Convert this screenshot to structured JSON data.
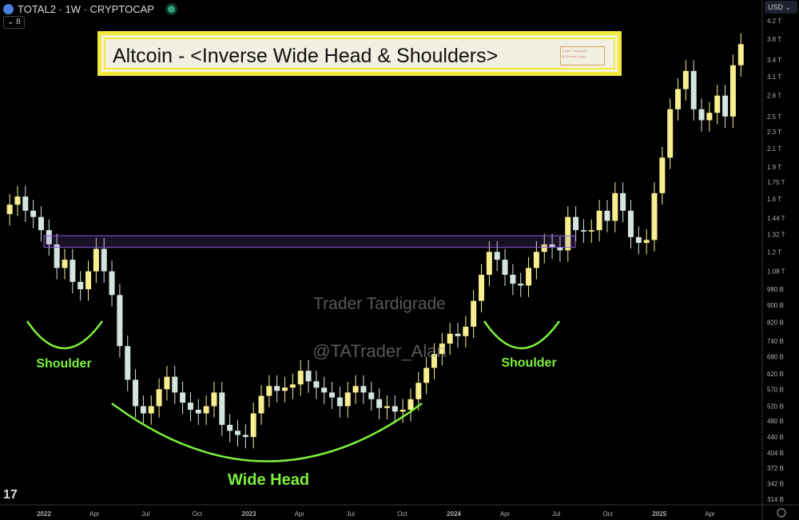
{
  "header": {
    "symbol": "TOTAL2 · 1W · CRYPTOCAP",
    "indicators_count": "8",
    "currency": "USD"
  },
  "title_box": {
    "text": "Altcoin - <Inverse Wide Head & Shoulders>",
    "badge": "Trader Tardigrade @TATrader_Alan"
  },
  "watermarks": {
    "name": "Trader Tardigrade",
    "handle": "@TATrader_Alan"
  },
  "colors": {
    "up": "#f7ee8f",
    "down": "#d4e4de",
    "annotation": "#7cf03c",
    "neckline": "#8a5cd8",
    "title_border": "#f2ea3a"
  },
  "chart_data": {
    "type": "candlestick",
    "y_scale": "log",
    "ylim_billions": [
      314,
      4200
    ],
    "y_ticks": [
      "4.2 T",
      "3.8 T",
      "3.4 T",
      "3.1 T",
      "2.8 T",
      "2.5 T",
      "2.3 T",
      "2.1 T",
      "1.9 T",
      "1.75 T",
      "1.6 T",
      "1.44 T",
      "1.32 T",
      "1.2 T",
      "1.08 T",
      "980 B",
      "900 B",
      "820 B",
      "740 B",
      "680 B",
      "620 B",
      "570 B",
      "520 B",
      "480 B",
      "440 B",
      "404 B",
      "372 B",
      "342 B",
      "314 B"
    ],
    "y_tick_values_billions": [
      4200,
      3800,
      3400,
      3100,
      2800,
      2500,
      2300,
      2100,
      1900,
      1750,
      1600,
      1440,
      1320,
      1200,
      1080,
      980,
      900,
      820,
      740,
      680,
      620,
      570,
      520,
      480,
      440,
      404,
      372,
      342,
      314
    ],
    "x_ticks": [
      "2022",
      "Apr",
      "Jul",
      "Oct",
      "2023",
      "Apr",
      "Jul",
      "Oct",
      "2024",
      "Apr",
      "Jul",
      "Oct",
      "2025",
      "Apr"
    ],
    "x_tick_dates": [
      "2022-01-01",
      "2022-04-01",
      "2022-07-01",
      "2022-10-01",
      "2023-01-01",
      "2023-04-01",
      "2023-07-01",
      "2023-10-01",
      "2024-01-01",
      "2024-04-01",
      "2024-07-01",
      "2024-10-01",
      "2025-01-01",
      "2025-04-01"
    ],
    "dates": [
      "2021-11-01",
      "2021-11-15",
      "2021-11-29",
      "2021-12-13",
      "2021-12-27",
      "2022-01-10",
      "2022-01-24",
      "2022-02-07",
      "2022-02-21",
      "2022-03-07",
      "2022-03-21",
      "2022-04-04",
      "2022-04-18",
      "2022-05-02",
      "2022-05-16",
      "2022-05-30",
      "2022-06-13",
      "2022-06-27",
      "2022-07-11",
      "2022-07-25",
      "2022-08-08",
      "2022-08-22",
      "2022-09-05",
      "2022-09-19",
      "2022-10-03",
      "2022-10-17",
      "2022-10-31",
      "2022-11-14",
      "2022-11-28",
      "2022-12-12",
      "2022-12-26",
      "2023-01-09",
      "2023-01-23",
      "2023-02-06",
      "2023-02-20",
      "2023-03-06",
      "2023-03-20",
      "2023-04-03",
      "2023-04-17",
      "2023-05-01",
      "2023-05-15",
      "2023-05-29",
      "2023-06-12",
      "2023-06-26",
      "2023-07-10",
      "2023-07-24",
      "2023-08-07",
      "2023-08-21",
      "2023-09-04",
      "2023-09-18",
      "2023-10-02",
      "2023-10-16",
      "2023-10-30",
      "2023-11-13",
      "2023-11-27",
      "2023-12-11",
      "2023-12-25",
      "2024-01-08",
      "2024-01-22",
      "2024-02-05",
      "2024-02-19",
      "2024-03-04",
      "2024-03-18",
      "2024-04-01",
      "2024-04-15",
      "2024-04-29",
      "2024-05-13",
      "2024-05-27",
      "2024-06-10",
      "2024-06-24",
      "2024-07-08",
      "2024-07-22",
      "2024-08-05",
      "2024-08-19",
      "2024-09-02",
      "2024-09-16",
      "2024-09-30",
      "2024-10-14",
      "2024-10-28",
      "2024-11-11",
      "2024-11-25",
      "2024-12-09",
      "2024-12-23",
      "2025-01-06",
      "2025-01-20",
      "2025-02-03",
      "2025-02-17",
      "2025-03-03",
      "2025-03-17",
      "2025-03-31",
      "2025-04-14",
      "2025-04-28",
      "2025-05-12",
      "2025-05-26"
    ],
    "close_billions": [
      1550,
      1620,
      1500,
      1450,
      1350,
      1250,
      1100,
      1150,
      1020,
      980,
      1080,
      1220,
      1080,
      950,
      720,
      600,
      520,
      500,
      520,
      570,
      610,
      560,
      530,
      510,
      500,
      520,
      560,
      470,
      455,
      445,
      440,
      500,
      550,
      580,
      565,
      575,
      585,
      630,
      595,
      575,
      560,
      545,
      520,
      560,
      580,
      560,
      540,
      515,
      520,
      505,
      510,
      540,
      590,
      640,
      690,
      730,
      770,
      760,
      800,
      920,
      1060,
      1200,
      1150,
      1060,
      1010,
      1000,
      1100,
      1200,
      1250,
      1230,
      1210,
      1450,
      1350,
      1340,
      1350,
      1500,
      1420,
      1650,
      1500,
      1300,
      1260,
      1280,
      1650,
      2000,
      2600,
      2900,
      3200,
      2600,
      2450,
      2550,
      2800,
      2500,
      3300,
      3700
    ],
    "neckline_billions": [
      1230,
      1310
    ],
    "annotations": [
      "Shoulder",
      "Wide Head",
      "Shoulder"
    ]
  }
}
